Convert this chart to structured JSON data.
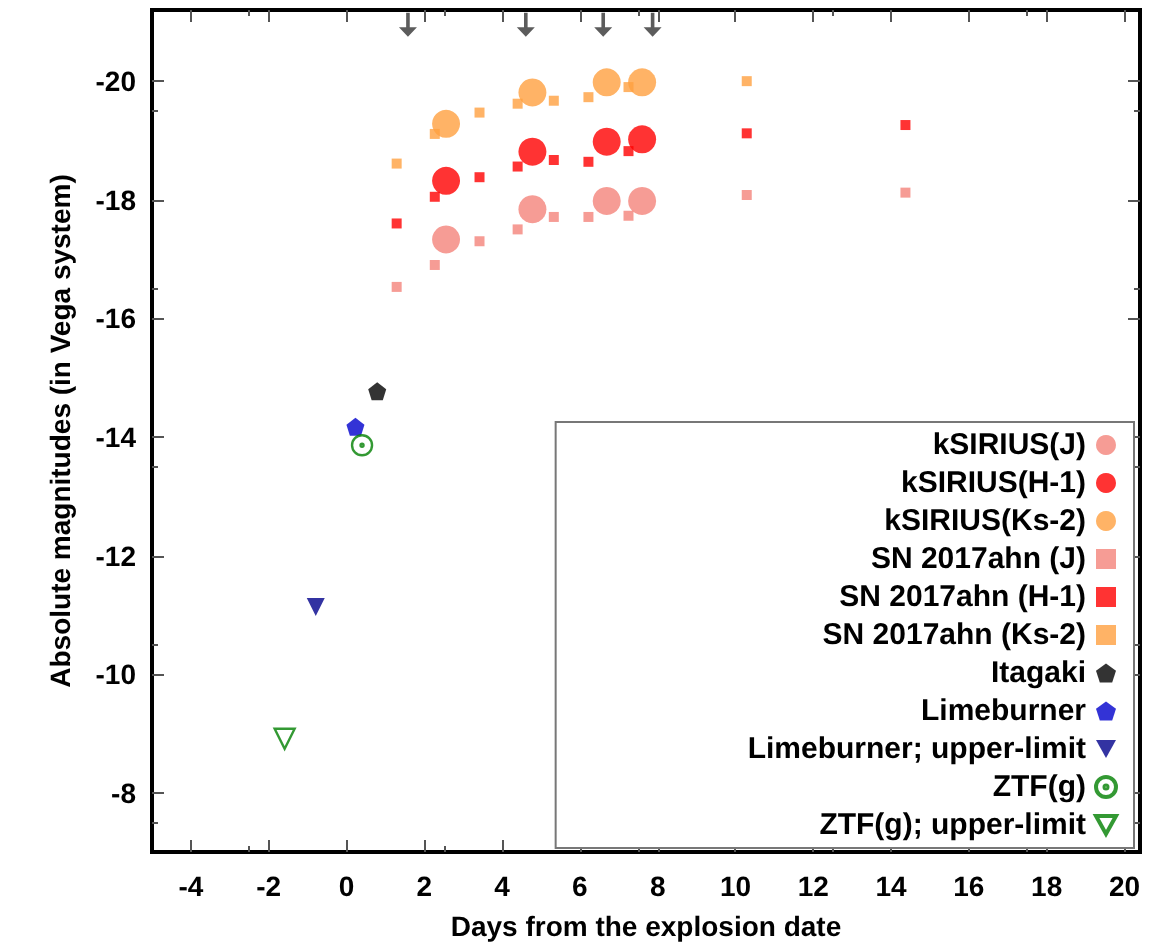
{
  "chart_data": {
    "type": "scatter",
    "xlabel": "Days from the explosion date",
    "ylabel": "Absolute magnitudes (in Vega system)",
    "xlim": [
      -5,
      20.4
    ],
    "xticks": [
      -4,
      -2,
      0,
      2,
      4,
      6,
      8,
      10,
      12,
      14,
      16,
      18,
      20
    ],
    "ylim": [
      -7,
      -21.2
    ],
    "yticks": [
      -8,
      -10,
      -12,
      -14,
      -16,
      -18,
      -20
    ],
    "legend": "bottom right",
    "grid": false,
    "series": [
      {
        "name": "kSIRIUS(J)",
        "color": "#f4837a",
        "marker": "circle",
        "x": [
          2.56,
          4.78,
          6.69,
          7.6
        ],
        "values": [
          -17.33,
          -17.84,
          -17.98,
          -17.98
        ]
      },
      {
        "name": "kSIRIUS(H-1)",
        "color": "#ff0000",
        "marker": "circle",
        "x": [
          2.56,
          4.78,
          6.69,
          7.6
        ],
        "values": [
          -18.32,
          -18.81,
          -18.98,
          -19.02
        ]
      },
      {
        "name": "kSIRIUS(Ks-2)",
        "color": "#ffa040",
        "marker": "circle",
        "x": [
          2.56,
          4.78,
          6.69,
          7.6
        ],
        "values": [
          -19.28,
          -19.81,
          -19.98,
          -19.98
        ]
      },
      {
        "name": "SN 2017ahn (J)",
        "color": "#f4837a",
        "marker": "square",
        "x": [
          1.29,
          2.27,
          3.42,
          4.4,
          5.33,
          6.22,
          7.25,
          10.29,
          14.37
        ],
        "values": [
          -16.53,
          -16.9,
          -17.3,
          -17.5,
          -17.71,
          -17.71,
          -17.73,
          -18.08,
          -18.12
        ]
      },
      {
        "name": "SN 2017ahn (H-1)",
        "color": "#ff0000",
        "marker": "square",
        "x": [
          1.29,
          2.27,
          3.42,
          4.4,
          5.33,
          6.22,
          7.25,
          10.29,
          14.37
        ],
        "values": [
          -17.6,
          -18.05,
          -18.38,
          -18.56,
          -18.67,
          -18.64,
          -18.82,
          -19.12,
          -19.26
        ]
      },
      {
        "name": "SN 2017ahn (Ks-2)",
        "color": "#ffa040",
        "marker": "square",
        "x": [
          1.29,
          2.27,
          3.42,
          4.4,
          5.33,
          6.22,
          7.25,
          10.29
        ],
        "values": [
          -18.61,
          -19.11,
          -19.47,
          -19.62,
          -19.67,
          -19.73,
          -19.9,
          -20.0
        ]
      },
      {
        "name": "Itagaki",
        "color": "#000000",
        "x": [
          0.79
        ],
        "values": [
          -14.77
        ]
      },
      {
        "name": "Limeburner",
        "color": "#0000cc",
        "x": [
          0.23
        ],
        "values": [
          -14.17
        ]
      },
      {
        "name": "Limeburner; upper-limit",
        "color": "#00008b",
        "marker": "triangle-down",
        "x": [
          -0.79
        ],
        "values": [
          -11.13
        ]
      },
      {
        "name": "ZTF(g)",
        "color": "#008000",
        "marker": "circle-dot",
        "x": [
          0.4
        ],
        "values": [
          -13.86
        ]
      },
      {
        "name": "ZTF(g); upper-limit",
        "color": "#008000",
        "marker": "triangle-down-open",
        "x": [
          -1.59
        ],
        "values": [
          -8.91
        ]
      },
      {
        "color": "#333333",
        "x": [
          1.58,
          4.61,
          6.6,
          7.87
        ],
        "values": [
          -20.95,
          -20.95,
          -20.95,
          -20.95
        ]
      }
    ]
  }
}
